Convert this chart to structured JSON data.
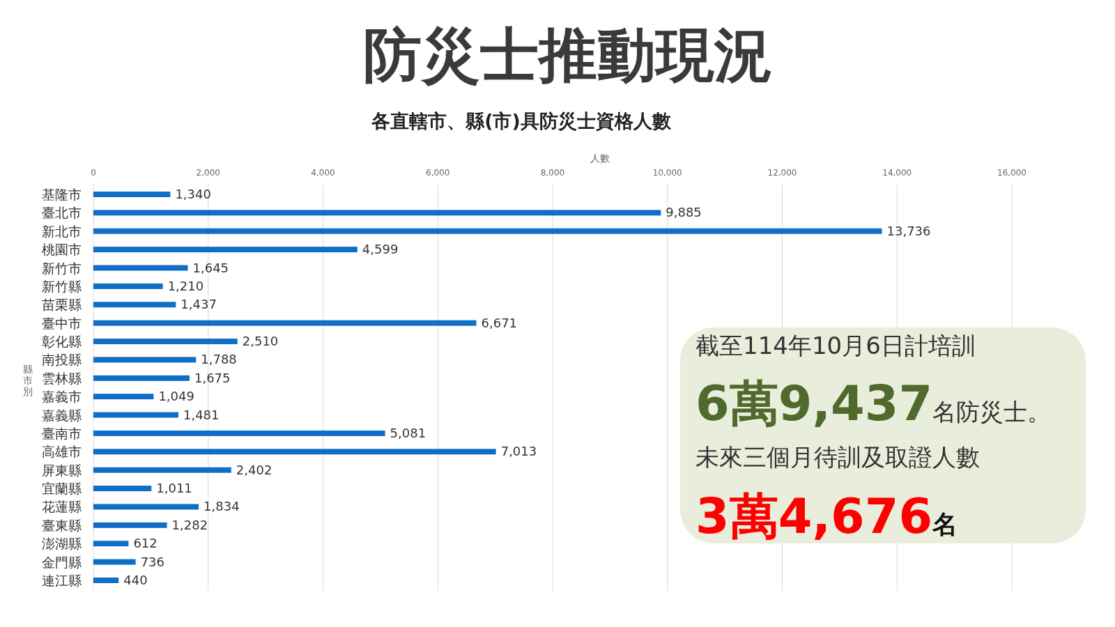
{
  "chart_data": {
    "type": "bar",
    "orientation": "horizontal",
    "title": "防災士推動現況",
    "subtitle": "各直轄市、縣(市)具防災士資格人數",
    "xlabel": "人數",
    "ylabel": "縣市別",
    "categories": [
      "基隆市",
      "臺北市",
      "新北市",
      "桃園市",
      "新竹市",
      "新竹縣",
      "苗栗縣",
      "臺中市",
      "彰化縣",
      "南投縣",
      "雲林縣",
      "嘉義市",
      "嘉義縣",
      "臺南市",
      "高雄市",
      "屏東縣",
      "宜蘭縣",
      "花蓮縣",
      "臺東縣",
      "澎湖縣",
      "金門縣",
      "連江縣"
    ],
    "values": [
      1340,
      9885,
      13736,
      4599,
      1645,
      1210,
      1437,
      6671,
      2510,
      1788,
      1675,
      1049,
      1481,
      5081,
      7013,
      2402,
      1011,
      1834,
      1282,
      612,
      736,
      440
    ],
    "value_labels": [
      "1,340",
      "9,885",
      "13,736",
      "4,599",
      "1,645",
      "1,210",
      "1,437",
      "6,671",
      "2,510",
      "1,788",
      "1,675",
      "1,049",
      "1,481",
      "5,081",
      "7,013",
      "2,402",
      "1,011",
      "1,834",
      "1,282",
      "612",
      "736",
      "440"
    ],
    "color": "#0f6fc6",
    "grid": "x",
    "xlim": [
      0,
      16000
    ],
    "xticks": [
      0,
      {
        "value": 2000,
        "label": "2,000"
      },
      {
        "value": 4000,
        "label": "4,000"
      },
      {
        "value": 6000,
        "label": "6,000"
      },
      {
        "value": 8000,
        "label": "8,000"
      },
      {
        "value": 10000,
        "label": "10,000"
      },
      {
        "value": 12000,
        "label": "12,000"
      },
      {
        "value": 14000,
        "label": "14,000"
      },
      {
        "value": 16000,
        "label": "16,000"
      }
    ],
    "annotations": [
      "截至114年10月6日計培訓",
      "6萬9,437",
      "名防災士。",
      "未來三個月待訓及取證人數",
      "3萬4,676",
      "名"
    ]
  }
}
